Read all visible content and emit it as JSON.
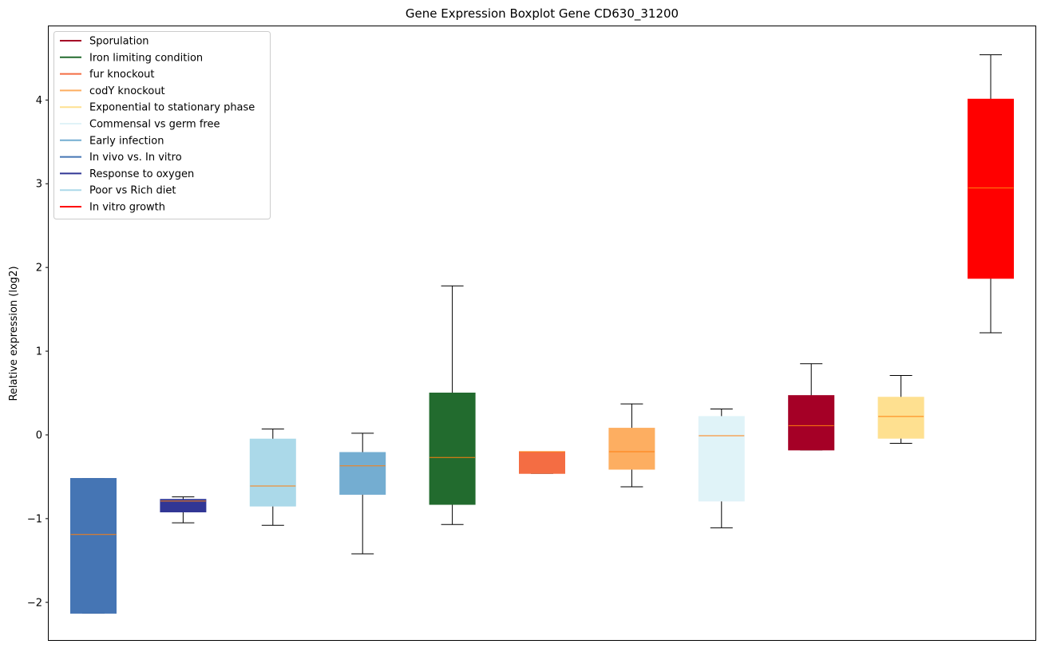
{
  "chart_data": {
    "type": "boxplot",
    "title": "Gene Expression Boxplot Gene CD630_31200",
    "xlabel": "",
    "ylabel": "Relative expression (log2)",
    "ylim": [
      -2.45,
      4.88
    ],
    "yticks": [
      -2,
      -1,
      0,
      1,
      2,
      3,
      4
    ],
    "ytick_labels": [
      "−2",
      "−1",
      "0",
      "1",
      "2",
      "3",
      "4"
    ],
    "legend_location": "upper-left",
    "legend": [
      {
        "label": "Sporulation",
        "color": "#a50026"
      },
      {
        "label": "Iron limiting condition",
        "color": "#226b2e"
      },
      {
        "label": "fur knockout",
        "color": "#f46d43"
      },
      {
        "label": "codY knockout",
        "color": "#fdae61"
      },
      {
        "label": "Exponential to stationary phase",
        "color": "#fee090"
      },
      {
        "label": "Commensal vs germ free",
        "color": "#e0f3f8"
      },
      {
        "label": "Early infection",
        "color": "#74add1"
      },
      {
        "label": "In vivo vs. In vitro",
        "color": "#4575b4"
      },
      {
        "label": "Response to oxygen",
        "color": "#313695"
      },
      {
        "label": "Poor vs Rich diet",
        "color": "#abd9e9"
      },
      {
        "label": "In vitro growth",
        "color": "#ff0000"
      }
    ],
    "boxes": [
      {
        "group": "In vivo vs. In vitro",
        "color": "#4575b4",
        "whisker_low": -2.13,
        "q1": -2.13,
        "median": -1.19,
        "q3": -0.52,
        "whisker_high": -0.52
      },
      {
        "group": "Response to oxygen",
        "color": "#313695",
        "whisker_low": -1.05,
        "q1": -0.92,
        "median": -0.79,
        "q3": -0.77,
        "whisker_high": -0.74
      },
      {
        "group": "Poor vs Rich diet",
        "color": "#abd9e9",
        "whisker_low": -1.08,
        "q1": -0.85,
        "median": -0.61,
        "q3": -0.05,
        "whisker_high": 0.07
      },
      {
        "group": "Early infection",
        "color": "#74add1",
        "whisker_low": -1.42,
        "q1": -0.71,
        "median": -0.37,
        "q3": -0.21,
        "whisker_high": 0.02
      },
      {
        "group": "Iron limiting condition",
        "color": "#226b2e",
        "whisker_low": -1.07,
        "q1": -0.83,
        "median": -0.27,
        "q3": 0.5,
        "whisker_high": 1.78
      },
      {
        "group": "fur knockout",
        "color": "#f46d43",
        "whisker_low": -0.46,
        "q1": -0.46,
        "median": -0.2,
        "q3": -0.2,
        "whisker_high": -0.2
      },
      {
        "group": "codY knockout",
        "color": "#fdae61",
        "whisker_low": -0.62,
        "q1": -0.41,
        "median": -0.2,
        "q3": 0.08,
        "whisker_high": 0.37
      },
      {
        "group": "Commensal vs germ free",
        "color": "#e0f3f8",
        "whisker_low": -1.11,
        "q1": -0.79,
        "median": -0.01,
        "q3": 0.22,
        "whisker_high": 0.31
      },
      {
        "group": "Sporulation",
        "color": "#a50026",
        "whisker_low": -0.18,
        "q1": -0.18,
        "median": 0.11,
        "q3": 0.47,
        "whisker_high": 0.85
      },
      {
        "group": "Exponential to stationary phase",
        "color": "#fee090",
        "whisker_low": -0.1,
        "q1": -0.04,
        "median": 0.22,
        "q3": 0.45,
        "whisker_high": 0.71
      },
      {
        "group": "In vitro growth",
        "color": "#ff0000",
        "whisker_low": 1.22,
        "q1": 1.87,
        "median": 2.95,
        "q3": 4.01,
        "whisker_high": 4.54
      }
    ],
    "median_color": "#ff7f0e",
    "whisker_color": "#000000"
  }
}
